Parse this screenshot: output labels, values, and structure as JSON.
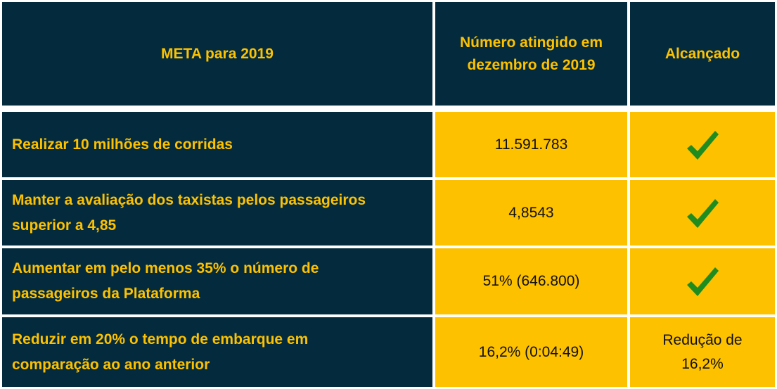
{
  "header": {
    "goal": "META para 2019",
    "number": "Número atingido em dezembro de 2019",
    "achieved": "Alcançado"
  },
  "rows": [
    {
      "goal": "Realizar 10 milhões de corridas",
      "value": "11.591.783",
      "achieved": "check-icon"
    },
    {
      "goal": "Manter a avaliação dos taxistas pelos passageiros superior a 4,85",
      "value": "4,8543",
      "achieved": "check-icon"
    },
    {
      "goal": "Aumentar em pelo menos 35% o número de passageiros da Plataforma",
      "value": "51% (646.800)",
      "achieved": "check-icon"
    },
    {
      "goal": "Reduzir em 20% o tempo de embarque em comparação ao ano anterior",
      "value": "16,2% (0:04:49)",
      "achieved_text": "Redução de 16,2%"
    }
  ],
  "colors": {
    "navy": "#032b3d",
    "gold": "#fdc100",
    "check": "#1e8c1e"
  }
}
